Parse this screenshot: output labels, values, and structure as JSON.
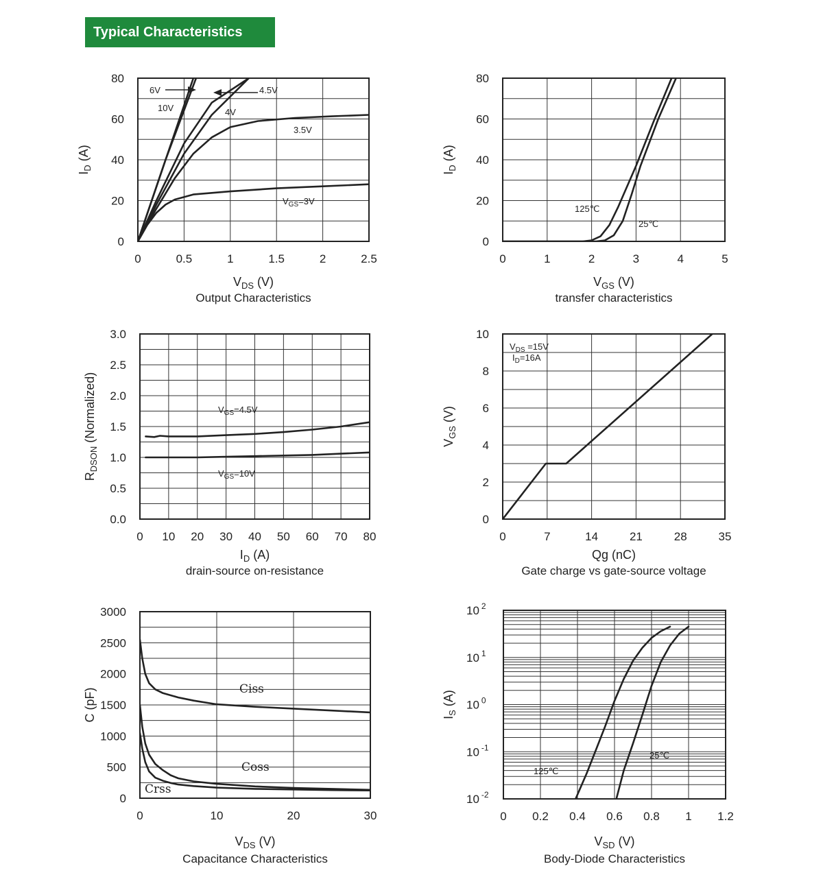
{
  "header": {
    "title": "Typical Characteristics",
    "color": "#1f8a3c"
  },
  "chart_data": [
    {
      "type": "line",
      "title": "Output Characteristics",
      "xlabel_main": "V",
      "xlabel_sub": "DS",
      "xlabel_unit": " (V)",
      "ylabel_main": "I",
      "ylabel_sub": "D",
      "ylabel_unit": " (A)",
      "xlim": [
        0,
        2.5
      ],
      "ylim": [
        0,
        80
      ],
      "xticks": [
        "0",
        "0.5",
        "1",
        "1.5",
        "2",
        "2.5"
      ],
      "yticks": [
        "0",
        "20",
        "40",
        "60",
        "80"
      ],
      "grid": true,
      "series": [
        {
          "name": "10V",
          "x": [
            0,
            0.6
          ],
          "y": [
            0,
            80
          ]
        },
        {
          "name": "6V",
          "x": [
            0,
            0.3,
            0.63
          ],
          "y": [
            0,
            40,
            80
          ]
        },
        {
          "name": "4.5V",
          "x": [
            0,
            0.2,
            0.5,
            0.8,
            1.2
          ],
          "y": [
            0,
            20,
            48,
            68,
            80
          ]
        },
        {
          "name": "4V",
          "x": [
            0,
            0.2,
            0.5,
            0.8,
            1.0,
            1.2
          ],
          "y": [
            0,
            18,
            43,
            62,
            71,
            80
          ]
        },
        {
          "name": "3.5V",
          "x": [
            0,
            0.2,
            0.4,
            0.6,
            0.8,
            1.0,
            1.3,
            1.7,
            2.1,
            2.5
          ],
          "y": [
            0,
            16,
            31,
            43,
            51,
            56,
            59,
            60.5,
            61.3,
            62
          ]
        },
        {
          "name": "VGS=3V",
          "x": [
            0,
            0.1,
            0.2,
            0.3,
            0.4,
            0.6,
            1.0,
            1.5,
            2.0,
            2.5
          ],
          "y": [
            0,
            8,
            14,
            18,
            20.5,
            23,
            24.5,
            26,
            27,
            28
          ]
        }
      ],
      "annotations": [
        {
          "main": "6V",
          "sub": "",
          "tail": ""
        },
        {
          "main": "10V",
          "sub": "",
          "tail": ""
        },
        {
          "main": "4.5V",
          "sub": "",
          "tail": ""
        },
        {
          "main": "4V",
          "sub": "",
          "tail": ""
        },
        {
          "main": "3.5V",
          "sub": "",
          "tail": ""
        },
        {
          "main": "V",
          "sub": "GS",
          "tail": "=3V"
        }
      ]
    },
    {
      "type": "line",
      "title": "transfer characteristics",
      "xlabel_main": "V",
      "xlabel_sub": "GS",
      "xlabel_unit": " (V)",
      "ylabel_main": "I",
      "ylabel_sub": "D",
      "ylabel_unit": " (A)",
      "xlim": [
        0,
        5
      ],
      "ylim": [
        0,
        80
      ],
      "xticks": [
        "0",
        "1",
        "2",
        "3",
        "4",
        "5"
      ],
      "yticks": [
        "0",
        "20",
        "40",
        "60",
        "80"
      ],
      "grid": true,
      "series": [
        {
          "name": "125℃",
          "x": [
            0,
            1.8,
            2.0,
            2.2,
            2.4,
            2.6,
            3.0,
            3.4,
            3.8
          ],
          "y": [
            0,
            0,
            0.5,
            2.5,
            8,
            17,
            37,
            59,
            80
          ]
        },
        {
          "name": "25℃",
          "x": [
            0,
            2.1,
            2.3,
            2.5,
            2.7,
            2.9,
            3.1,
            3.5,
            3.9
          ],
          "y": [
            0,
            0,
            0.5,
            3,
            10,
            23,
            37,
            60,
            80
          ]
        }
      ],
      "annotations": [
        {
          "main": "125℃",
          "sub": "",
          "tail": ""
        },
        {
          "main": "25℃",
          "sub": "",
          "tail": ""
        }
      ]
    },
    {
      "type": "line",
      "title": "drain-source on-resistance",
      "xlabel_main": "I",
      "xlabel_sub": "D",
      "xlabel_unit": "  (A)",
      "ylabel_main": "R",
      "ylabel_sub": "DSON",
      "ylabel_unit": " (Normalized)",
      "xlim": [
        0,
        80
      ],
      "ylim": [
        0,
        3
      ],
      "xticks": [
        "0",
        "10",
        "20",
        "30",
        "40",
        "50",
        "60",
        "70",
        "80"
      ],
      "yticks": [
        "0.0",
        "0.5",
        "1.0",
        "1.5",
        "2.0",
        "2.5",
        "3.0"
      ],
      "grid": true,
      "series": [
        {
          "name": "VGS=4.5V",
          "x": [
            2,
            5,
            7,
            10,
            20,
            30,
            40,
            50,
            60,
            70,
            80
          ],
          "y": [
            1.34,
            1.33,
            1.35,
            1.34,
            1.34,
            1.36,
            1.38,
            1.41,
            1.45,
            1.5,
            1.57
          ]
        },
        {
          "name": "VGS=10V",
          "x": [
            2,
            10,
            20,
            30,
            40,
            50,
            60,
            70,
            80
          ],
          "y": [
            1.0,
            1.0,
            1.0,
            1.01,
            1.02,
            1.03,
            1.04,
            1.06,
            1.08
          ]
        }
      ],
      "annotations": [
        {
          "main": "V",
          "sub": "GS",
          "tail": "=4.5V"
        },
        {
          "main": "V",
          "sub": "GS",
          "tail": "=10V"
        }
      ]
    },
    {
      "type": "line",
      "title": "Gate charge vs gate-source voltage",
      "xlabel_main": "Qg",
      "xlabel_sub": "",
      "xlabel_unit": "  (nC)",
      "ylabel_main": "V",
      "ylabel_sub": "GS",
      "ylabel_unit": " (V)",
      "xlim": [
        0,
        35
      ],
      "ylim": [
        0,
        10
      ],
      "xticks": [
        "0",
        "7",
        "14",
        "21",
        "28",
        "35"
      ],
      "yticks": [
        "0",
        "2",
        "4",
        "6",
        "8",
        "10"
      ],
      "grid": true,
      "series": [
        {
          "name": "",
          "x": [
            0,
            6.8,
            10,
            33
          ],
          "y": [
            0,
            3,
            3,
            10
          ]
        }
      ],
      "annotations": [
        {
          "main": "V",
          "sub": "DS",
          "tail": " =15V"
        },
        {
          "main": "I",
          "sub": "D",
          "tail": "=16A"
        }
      ]
    },
    {
      "type": "line",
      "title": "Capacitance Characteristics",
      "xlabel_main": "V",
      "xlabel_sub": "DS",
      "xlabel_unit": " (V)",
      "ylabel_main": "C (pF)",
      "ylabel_sub": "",
      "ylabel_unit": "",
      "xlim": [
        0,
        30
      ],
      "ylim": [
        0,
        3000
      ],
      "xticks": [
        "0",
        "10",
        "20",
        "30"
      ],
      "yticks": [
        "0",
        "500",
        "1000",
        "1500",
        "2000",
        "2500",
        "3000"
      ],
      "grid": true,
      "series": [
        {
          "name": "Ciss",
          "x": [
            0,
            0.3,
            0.7,
            1.2,
            2,
            3,
            5,
            7,
            10,
            15,
            20,
            25,
            30
          ],
          "y": [
            2550,
            2250,
            2000,
            1850,
            1750,
            1690,
            1620,
            1570,
            1510,
            1470,
            1440,
            1410,
            1380
          ]
        },
        {
          "name": "Coss",
          "x": [
            0,
            0.3,
            0.7,
            1.2,
            2,
            3,
            4,
            5,
            7,
            10,
            15,
            20,
            25,
            30
          ],
          "y": [
            1500,
            1150,
            880,
            700,
            550,
            450,
            370,
            320,
            270,
            230,
            190,
            165,
            150,
            135
          ]
        },
        {
          "name": "Crss",
          "x": [
            0,
            0.3,
            0.7,
            1.2,
            2,
            3,
            4,
            5,
            7,
            10,
            15,
            20,
            25,
            30
          ],
          "y": [
            1050,
            800,
            580,
            430,
            330,
            280,
            245,
            220,
            195,
            170,
            150,
            140,
            130,
            125
          ]
        }
      ],
      "annotations": [
        {
          "main": "Ciss",
          "sub": "",
          "tail": ""
        },
        {
          "main": "Coss",
          "sub": "",
          "tail": ""
        },
        {
          "main": "Crss",
          "sub": "",
          "tail": ""
        }
      ]
    },
    {
      "type": "line",
      "title": "Body-Diode Characteristics",
      "xlabel_main": "V",
      "xlabel_sub": "SD",
      "xlabel_unit": " (V)",
      "ylabel_main": "I",
      "ylabel_sub": "S",
      "ylabel_unit": " (A)",
      "xlim": [
        0,
        1.2
      ],
      "ylim": [
        0.01,
        100
      ],
      "yscale": "log",
      "xticks": [
        "0",
        "0.2",
        "0.4",
        "0.6",
        "0.8",
        "1",
        "1.2"
      ],
      "yticks_log": [
        {
          "base": "10",
          "exp": "-2"
        },
        {
          "base": "10",
          "exp": "-1"
        },
        {
          "base": "10",
          "exp": "0"
        },
        {
          "base": "10",
          "exp": "1"
        },
        {
          "base": "10",
          "exp": "2"
        }
      ],
      "grid": true,
      "series": [
        {
          "name": "125℃",
          "x": [
            0.39,
            0.45,
            0.5,
            0.55,
            0.6,
            0.65,
            0.7,
            0.75,
            0.8,
            0.85,
            0.9
          ],
          "y": [
            0.01,
            0.035,
            0.11,
            0.35,
            1.2,
            3.5,
            8.5,
            16,
            26,
            36,
            45
          ]
        },
        {
          "name": "25℃",
          "x": [
            0.61,
            0.65,
            0.7,
            0.75,
            0.8,
            0.85,
            0.9,
            0.95,
            1.0
          ],
          "y": [
            0.01,
            0.04,
            0.15,
            0.6,
            2.5,
            8,
            18,
            32,
            45
          ]
        }
      ],
      "annotations": [
        {
          "main": "125℃",
          "sub": "",
          "tail": ""
        },
        {
          "main": "25℃",
          "sub": "",
          "tail": ""
        }
      ]
    }
  ]
}
